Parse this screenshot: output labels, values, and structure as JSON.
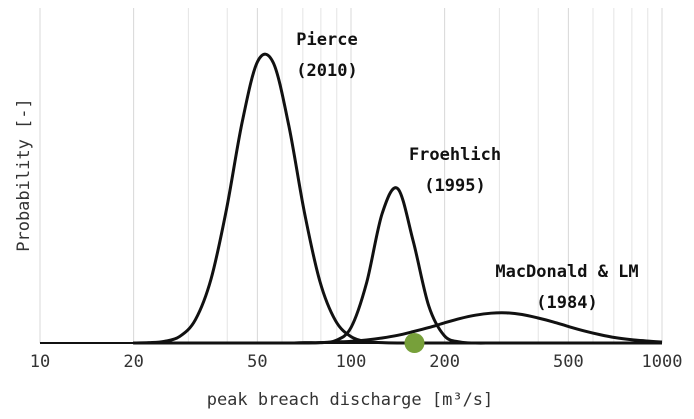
{
  "chart_data": {
    "type": "line",
    "xlabel": "peak breach discharge [m³/s]",
    "ylabel": "Probability [-]",
    "xscale": "log",
    "xlim": [
      10,
      1000
    ],
    "ylim": [
      0,
      1
    ],
    "xticks": [
      10,
      20,
      50,
      100,
      200,
      500,
      1000
    ],
    "xminor": [
      30,
      40,
      60,
      70,
      80,
      90,
      300,
      400,
      600,
      700,
      800,
      900
    ],
    "grid": true,
    "x": [
      19.95,
      22.39,
      25.12,
      28.18,
      31.62,
      35.48,
      39.81,
      44.67,
      50.12,
      56.23,
      63.1,
      70.79,
      79.43,
      89.13,
      100,
      112.2,
      125.9,
      141.3,
      158.5,
      177.8,
      199.5,
      223.9,
      251.2,
      281.8,
      316.2,
      354.8,
      398.1,
      446.7,
      501.2,
      562.3,
      631,
      707.9,
      794.3,
      891.3,
      1000
    ],
    "series": [
      {
        "label": [
          "Pierce",
          "(2010)"
        ],
        "color": "#111111",
        "values": [
          0,
          0.001,
          0.005,
          0.02,
          0.07,
          0.191,
          0.401,
          0.659,
          0.841,
          0.837,
          0.649,
          0.391,
          0.184,
          0.067,
          0.019,
          0.004,
          0.001,
          0,
          0,
          0,
          0,
          0,
          0,
          0,
          0,
          0,
          0,
          0,
          0,
          0,
          0,
          0,
          0,
          0,
          0
        ]
      },
      {
        "label": [
          "Froehlich",
          "(1995)"
        ],
        "color": "#111111",
        "values": [
          0,
          0,
          0,
          0,
          0,
          0,
          0,
          0,
          0,
          0,
          0,
          0,
          0.001,
          0.007,
          0.046,
          0.179,
          0.386,
          0.461,
          0.304,
          0.111,
          0.022,
          0.003,
          0,
          0,
          0,
          0,
          0,
          0,
          0,
          0,
          0,
          0,
          0,
          0,
          0
        ]
      },
      {
        "label": [
          "MacDonald & LM",
          "(1984)"
        ],
        "color": "#111111",
        "values": [
          0,
          0,
          0,
          0,
          0,
          0,
          0,
          0,
          0,
          0,
          0,
          0.001,
          0.001,
          0.003,
          0.005,
          0.009,
          0.015,
          0.023,
          0.034,
          0.046,
          0.06,
          0.073,
          0.083,
          0.089,
          0.09,
          0.085,
          0.075,
          0.063,
          0.049,
          0.036,
          0.025,
          0.016,
          0.01,
          0.006,
          0.003
        ]
      }
    ],
    "points": [
      {
        "x": 160,
        "y": 0,
        "color": "#77a03a"
      }
    ]
  }
}
